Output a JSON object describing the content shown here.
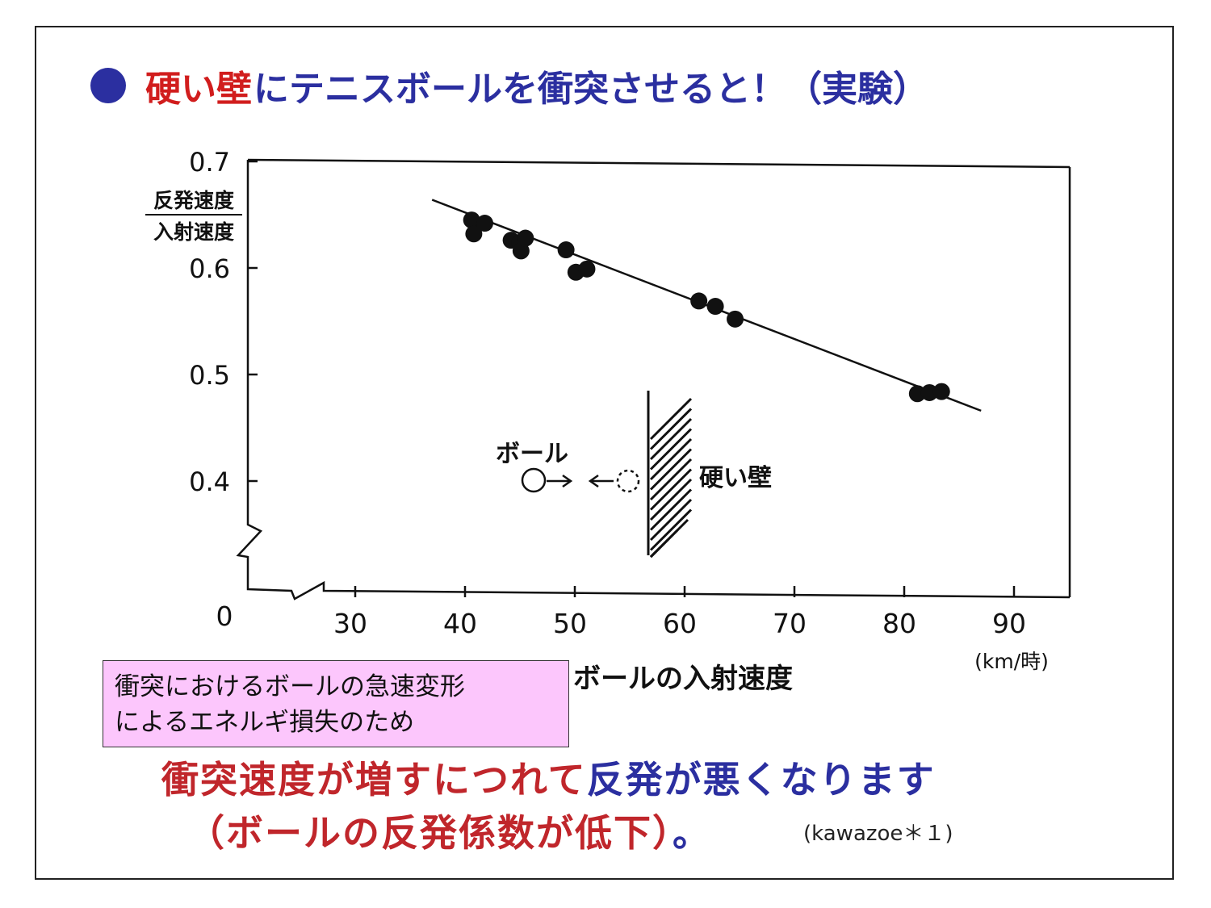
{
  "title": {
    "red_part": "硬い壁",
    "blue_part": "にテニスボールを衝突させると！（実験）",
    "bullet_color": "#2b2fa0"
  },
  "chart_data": {
    "type": "scatter",
    "y_label_numerator": "反発速度",
    "y_label_denominator": "入射速度",
    "x_label": "ボールの入射速度",
    "x_unit": "(km/時)",
    "x_ticks": [
      30,
      40,
      50,
      60,
      70,
      80,
      90
    ],
    "y_ticks": [
      0.4,
      0.5,
      0.6,
      0.7
    ],
    "origin_label": "0",
    "xlim": [
      24,
      94
    ],
    "ylim": [
      0.4,
      0.7
    ],
    "axis_breaks": true,
    "grid": false,
    "points": [
      {
        "x": 40.6,
        "y": 0.645
      },
      {
        "x": 40.8,
        "y": 0.632
      },
      {
        "x": 41.8,
        "y": 0.642
      },
      {
        "x": 44.2,
        "y": 0.626
      },
      {
        "x": 45.0,
        "y": 0.624
      },
      {
        "x": 45.1,
        "y": 0.616
      },
      {
        "x": 45.5,
        "y": 0.628
      },
      {
        "x": 49.2,
        "y": 0.617
      },
      {
        "x": 50.1,
        "y": 0.596
      },
      {
        "x": 51.1,
        "y": 0.599
      },
      {
        "x": 61.3,
        "y": 0.569
      },
      {
        "x": 62.8,
        "y": 0.564
      },
      {
        "x": 64.6,
        "y": 0.552
      },
      {
        "x": 81.2,
        "y": 0.482
      },
      {
        "x": 82.3,
        "y": 0.483
      },
      {
        "x": 83.4,
        "y": 0.484
      }
    ],
    "fit_line": [
      {
        "x": 37.0,
        "y": 0.664
      },
      {
        "x": 87.0,
        "y": 0.466
      }
    ],
    "inset": {
      "ball_label": "ボール",
      "wall_label": "硬い壁"
    }
  },
  "callout": {
    "line1": "衝突におけるボールの急速変形",
    "line2": "によるエネルギ損失のため",
    "background": "#fcc6fc"
  },
  "conclusion": {
    "line1_red": "衝突速度が増すにつれて",
    "line1_blue": "反発が悪くなります",
    "line2_red": "（ボールの反発係数が低下）",
    "line2_end": "。"
  },
  "citation": "(kawazoe＊１)"
}
